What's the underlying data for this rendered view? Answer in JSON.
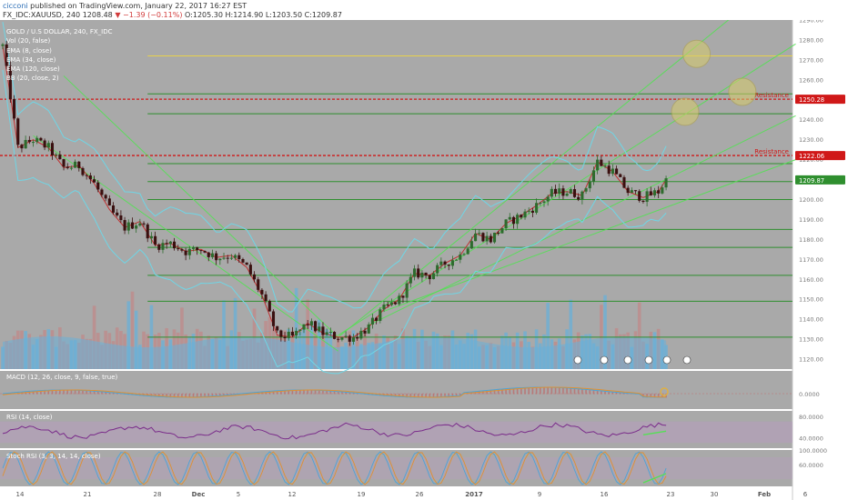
{
  "header": {
    "user": "cicconi",
    "published_text": "published on TradingView.com, January 22, 2017 16:27 EST",
    "symbol": "FX_IDC:XAUUSD, 240",
    "last": "1208.48",
    "change": "▼ −1.39 (−0.11%)",
    "ohlc": "O:1205.30 H:1214.90 L:1203.50 C:1209.87"
  },
  "indicators": {
    "title": "GOLD / U.S DOLLAR, 240, FX_IDC",
    "vol": "Vol (20, false)",
    "ema8": "EMA (8, close)",
    "ema34": "EMA (34, close)",
    "ema120": "EMA (120, close)",
    "bb": "BB (20, close, 2)",
    "macd": "MACD (12, 26, close, 9, false, true)",
    "rsi": "RSI (14, close)",
    "stoch": "Stoch RSI (3, 3, 14, 14, close)"
  },
  "colors": {
    "background": "#a9a9a9",
    "up": "#3c8c3c",
    "down": "#7a1f1f",
    "resistance": "#d01818",
    "support": "#2f8f2f",
    "trend": "#55e055",
    "bollinger": "#6fd6e6",
    "volume": "#6ab0d8",
    "rsi": "#7a2c8a",
    "highlight_circle": "#d8cc6a"
  },
  "chart_data": [
    {
      "type": "candlestick",
      "title": "GOLD / U.S DOLLAR, 240, FX_IDC",
      "ylim": [
        1115,
        1290
      ],
      "y_ticks": [
        1120,
        1130,
        1140,
        1150,
        1160,
        1170,
        1180,
        1190,
        1200,
        1210,
        1220,
        1230,
        1240,
        1250,
        1260,
        1270,
        1280,
        1290
      ],
      "x_tick_labels": [
        "14",
        "21",
        "28",
        "Dec",
        "5",
        "12",
        "19",
        "26",
        "2017",
        "9",
        "16",
        "23",
        "30",
        "Feb",
        "6"
      ],
      "price_path": [
        [
          0,
          1277
        ],
        [
          1,
          1252
        ],
        [
          2,
          1226
        ],
        [
          4,
          1230
        ],
        [
          6,
          1226
        ],
        [
          8,
          1216
        ],
        [
          10,
          1217
        ],
        [
          12,
          1208
        ],
        [
          14,
          1195
        ],
        [
          16,
          1186
        ],
        [
          18,
          1189
        ],
        [
          20,
          1177
        ],
        [
          22,
          1178
        ],
        [
          24,
          1174
        ],
        [
          26,
          1175
        ],
        [
          28,
          1171
        ],
        [
          30,
          1172
        ],
        [
          32,
          1166
        ],
        [
          34,
          1152
        ],
        [
          36,
          1132
        ],
        [
          38,
          1131
        ],
        [
          40,
          1138
        ],
        [
          42,
          1133
        ],
        [
          44,
          1131
        ],
        [
          46,
          1131
        ],
        [
          48,
          1136
        ],
        [
          50,
          1145
        ],
        [
          52,
          1150
        ],
        [
          54,
          1163
        ],
        [
          56,
          1162
        ],
        [
          58,
          1168
        ],
        [
          60,
          1172
        ],
        [
          62,
          1183
        ],
        [
          64,
          1180
        ],
        [
          66,
          1188
        ],
        [
          68,
          1192
        ],
        [
          70,
          1197
        ],
        [
          72,
          1203
        ],
        [
          74,
          1204
        ],
        [
          76,
          1202
        ],
        [
          78,
          1219
        ],
        [
          80,
          1214
        ],
        [
          82,
          1204
        ],
        [
          84,
          1201
        ],
        [
          86,
          1204
        ],
        [
          87,
          1210
        ]
      ],
      "price_labels": [
        {
          "value": 1250.28,
          "label": "1250.28",
          "note": "Resistance"
        },
        {
          "value": 1222.06,
          "label": "1222.06",
          "note": "Resistance"
        },
        {
          "value": 1209.87,
          "label": "1209.87"
        }
      ],
      "resistance_levels": [
        1250.28,
        1222.06
      ],
      "support_levels": [
        1131,
        1149,
        1162,
        1176,
        1185,
        1200,
        1209,
        1218,
        1243,
        1253
      ],
      "highlight_price_levels": [
        1273,
        1254,
        1244
      ],
      "annotations": [
        "Resistance",
        "Resistance"
      ],
      "grid": false
    },
    {
      "type": "line",
      "title": "MACD (12, 26, close, 9, false, true)",
      "ylim": [
        -5,
        5
      ],
      "y_ticks": [
        "0.0000"
      ]
    },
    {
      "type": "line",
      "title": "RSI (14, close)",
      "ylim": [
        20,
        90
      ],
      "y_ticks": [
        "80.0000",
        "40.0000"
      ]
    },
    {
      "type": "line",
      "title": "Stoch RSI (3, 3, 14, 14, close)",
      "ylim": [
        0,
        100
      ],
      "y_ticks": [
        "100.0000",
        "60.0000"
      ]
    }
  ]
}
